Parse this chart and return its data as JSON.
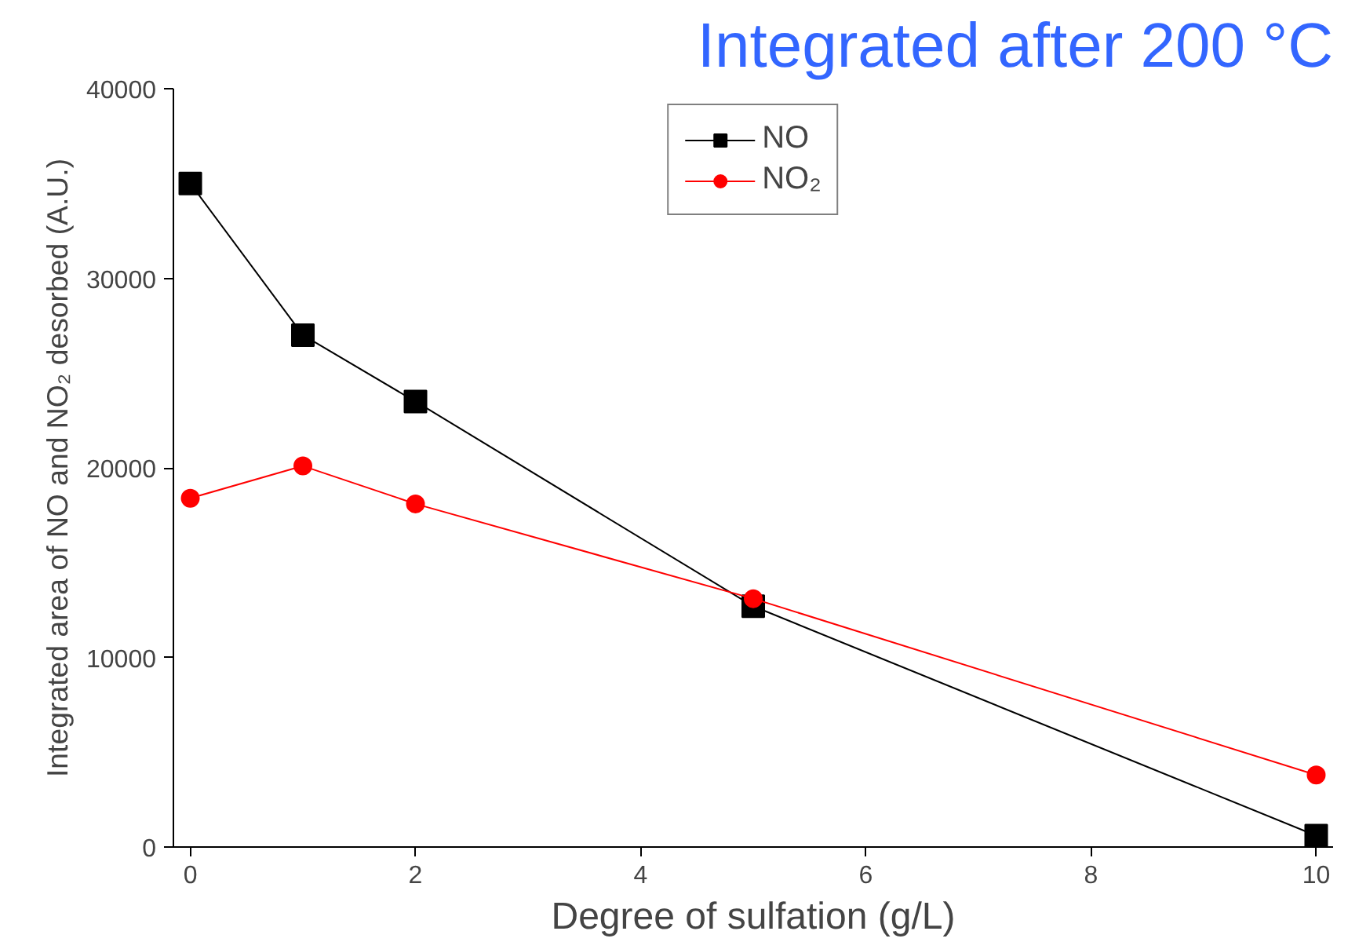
{
  "chart_data": {
    "type": "line",
    "title": "Integrated after 200 °C",
    "xlabel": "Degree of sulfation (g/L)",
    "ylabel": "Integrated area of NO and NO₂ desorbed (A.U.)",
    "x": [
      0,
      1,
      2,
      5,
      10
    ],
    "series": [
      {
        "name": "NO",
        "color": "#000000",
        "marker": "square",
        "values": [
          35000,
          27000,
          23500,
          12700,
          600
        ]
      },
      {
        "name": "NO₂",
        "color": "#ff0000",
        "marker": "circle",
        "values": [
          18400,
          20100,
          18100,
          13100,
          3800
        ]
      }
    ],
    "xlim": [
      -0.15,
      10.15
    ],
    "ylim": [
      0,
      40000
    ],
    "xticks": [
      0,
      2,
      4,
      6,
      8,
      10
    ],
    "yticks": [
      0,
      10000,
      20000,
      30000,
      40000
    ],
    "grid": false,
    "legend": "top",
    "line_style": "solid"
  }
}
